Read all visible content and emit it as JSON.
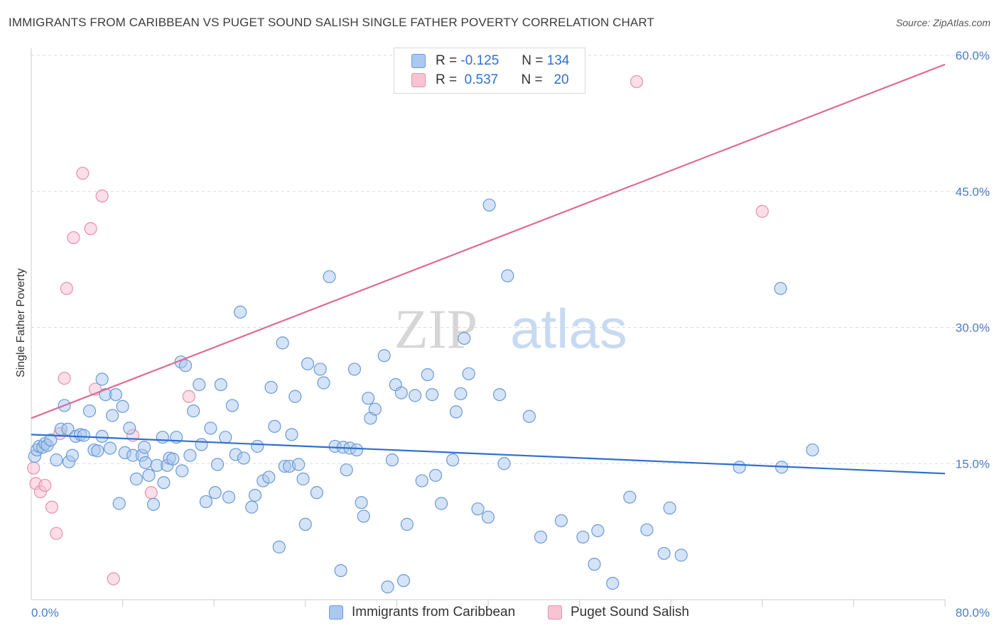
{
  "title": "IMMIGRANTS FROM CARIBBEAN VS PUGET SOUND SALISH SINGLE FATHER POVERTY CORRELATION CHART",
  "source": "Source: ZipAtlas.com",
  "watermark": {
    "zip": "ZIP",
    "atlas": "atlas"
  },
  "legend": {
    "rows": [
      {
        "r_label": "R =",
        "r_value": "-0.125",
        "n_label": "N =",
        "n_value": "134"
      },
      {
        "r_label": "R =",
        "r_value": "0.537",
        "n_label": "N =",
        "n_value": "20"
      }
    ]
  },
  "bottom_legend": [
    "Immigrants from Caribbean",
    "Puget Sound Salish"
  ],
  "colors": {
    "blue_fill": "#aac8f0",
    "blue_stroke": "#6a9ad6",
    "blue_line": "#2f6fce",
    "pink_fill": "#f8c3d3",
    "pink_stroke": "#e890ab",
    "pink_line": "#e06a94",
    "grid": "#dcdcdc",
    "axis_text": "#4a7cc7"
  },
  "chart_data": {
    "type": "scatter",
    "title": "IMMIGRANTS FROM CARIBBEAN VS PUGET SOUND SALISH SINGLE FATHER POVERTY CORRELATION CHART",
    "xlabel": "",
    "ylabel": "Single Father Poverty",
    "xlim": [
      0,
      80
    ],
    "ylim": [
      0,
      60
    ],
    "x_tick_labels": [
      "0.0%",
      "80.0%"
    ],
    "y_ticks": [
      15,
      30,
      45,
      60
    ],
    "y_tick_labels": [
      "15.0%",
      "30.0%",
      "45.0%",
      "60.0%"
    ],
    "grid": true,
    "series": [
      {
        "name": "Immigrants from Caribbean",
        "color": "#aac8f0",
        "R": -0.125,
        "N": 134,
        "trend": {
          "x": [
            0,
            80
          ],
          "y": [
            18.2,
            13.9
          ]
        },
        "points": [
          [
            0.3,
            15.8
          ],
          [
            0.5,
            16.5
          ],
          [
            0.7,
            16.9
          ],
          [
            1.0,
            16.8
          ],
          [
            1.2,
            17.2
          ],
          [
            1.4,
            17.0
          ],
          [
            1.7,
            17.6
          ],
          [
            2.2,
            15.4
          ],
          [
            2.6,
            18.8
          ],
          [
            2.9,
            21.4
          ],
          [
            3.2,
            18.8
          ],
          [
            3.3,
            15.2
          ],
          [
            3.6,
            15.9
          ],
          [
            3.9,
            18.0
          ],
          [
            4.3,
            18.2
          ],
          [
            4.6,
            18.1
          ],
          [
            5.1,
            20.8
          ],
          [
            5.5,
            16.5
          ],
          [
            5.8,
            16.4
          ],
          [
            6.2,
            18.0
          ],
          [
            6.2,
            24.3
          ],
          [
            6.5,
            22.6
          ],
          [
            6.9,
            16.7
          ],
          [
            7.1,
            20.3
          ],
          [
            7.4,
            22.6
          ],
          [
            7.7,
            10.6
          ],
          [
            8.0,
            21.3
          ],
          [
            8.2,
            16.2
          ],
          [
            8.6,
            18.9
          ],
          [
            8.9,
            15.9
          ],
          [
            9.2,
            13.3
          ],
          [
            9.7,
            15.9
          ],
          [
            9.9,
            16.8
          ],
          [
            10.0,
            15.1
          ],
          [
            10.3,
            13.7
          ],
          [
            10.7,
            10.5
          ],
          [
            11.0,
            14.8
          ],
          [
            11.5,
            17.9
          ],
          [
            11.6,
            12.9
          ],
          [
            11.9,
            14.8
          ],
          [
            12.1,
            15.6
          ],
          [
            12.4,
            15.5
          ],
          [
            12.7,
            17.9
          ],
          [
            13.1,
            26.2
          ],
          [
            13.2,
            14.2
          ],
          [
            13.5,
            25.8
          ],
          [
            14.2,
            20.8
          ],
          [
            13.9,
            15.9
          ],
          [
            14.7,
            23.7
          ],
          [
            14.9,
            17.1
          ],
          [
            15.3,
            10.8
          ],
          [
            15.7,
            18.9
          ],
          [
            16.1,
            11.8
          ],
          [
            16.3,
            14.9
          ],
          [
            16.6,
            23.7
          ],
          [
            17.0,
            17.9
          ],
          [
            17.3,
            11.3
          ],
          [
            17.6,
            21.4
          ],
          [
            17.9,
            16.0
          ],
          [
            18.3,
            31.7
          ],
          [
            18.6,
            15.6
          ],
          [
            19.3,
            10.2
          ],
          [
            19.6,
            11.5
          ],
          [
            19.8,
            16.9
          ],
          [
            20.3,
            13.1
          ],
          [
            20.8,
            13.5
          ],
          [
            21.0,
            23.4
          ],
          [
            21.3,
            19.1
          ],
          [
            21.7,
            5.8
          ],
          [
            22.0,
            28.3
          ],
          [
            22.2,
            14.7
          ],
          [
            22.6,
            14.7
          ],
          [
            22.8,
            18.2
          ],
          [
            23.1,
            22.4
          ],
          [
            23.4,
            14.9
          ],
          [
            23.8,
            13.3
          ],
          [
            24.0,
            8.3
          ],
          [
            24.2,
            26.0
          ],
          [
            25.0,
            11.8
          ],
          [
            25.3,
            25.4
          ],
          [
            25.6,
            23.9
          ],
          [
            26.1,
            35.6
          ],
          [
            26.6,
            16.9
          ],
          [
            27.1,
            3.2
          ],
          [
            27.3,
            16.8
          ],
          [
            27.6,
            14.3
          ],
          [
            27.9,
            16.7
          ],
          [
            28.3,
            25.4
          ],
          [
            28.5,
            16.5
          ],
          [
            28.9,
            10.7
          ],
          [
            29.1,
            9.2
          ],
          [
            29.5,
            22.2
          ],
          [
            29.7,
            20.0
          ],
          [
            30.1,
            21.0
          ],
          [
            30.9,
            26.9
          ],
          [
            31.2,
            1.4
          ],
          [
            31.6,
            15.4
          ],
          [
            31.9,
            23.7
          ],
          [
            32.4,
            22.8
          ],
          [
            32.6,
            2.1
          ],
          [
            32.9,
            8.3
          ],
          [
            33.6,
            22.5
          ],
          [
            34.2,
            13.1
          ],
          [
            34.7,
            24.8
          ],
          [
            35.1,
            22.6
          ],
          [
            35.4,
            13.7
          ],
          [
            35.9,
            10.6
          ],
          [
            36.9,
            15.4
          ],
          [
            37.2,
            20.7
          ],
          [
            37.6,
            22.7
          ],
          [
            37.9,
            28.8
          ],
          [
            38.3,
            24.9
          ],
          [
            39.1,
            10.0
          ],
          [
            40.0,
            9.1
          ],
          [
            40.1,
            43.5
          ],
          [
            41.0,
            22.6
          ],
          [
            41.4,
            15.0
          ],
          [
            41.7,
            35.7
          ],
          [
            43.6,
            20.2
          ],
          [
            44.6,
            6.9
          ],
          [
            46.4,
            8.7
          ],
          [
            48.3,
            6.9
          ],
          [
            49.3,
            3.9
          ],
          [
            49.6,
            7.6
          ],
          [
            50.9,
            1.8
          ],
          [
            52.4,
            11.3
          ],
          [
            53.9,
            7.7
          ],
          [
            55.4,
            5.1
          ],
          [
            55.9,
            10.1
          ],
          [
            56.9,
            4.9
          ],
          [
            62.0,
            14.6
          ],
          [
            65.7,
            14.6
          ],
          [
            65.6,
            34.3
          ],
          [
            68.4,
            16.5
          ]
        ]
      },
      {
        "name": "Puget Sound Salish",
        "color": "#f8c3d3",
        "R": 0.537,
        "N": 20,
        "trend": {
          "x": [
            0,
            80
          ],
          "y": [
            20.0,
            59.0
          ]
        },
        "points": [
          [
            0.2,
            14.5
          ],
          [
            0.4,
            12.8
          ],
          [
            0.8,
            11.9
          ],
          [
            1.2,
            12.6
          ],
          [
            1.8,
            10.2
          ],
          [
            2.2,
            7.3
          ],
          [
            2.5,
            18.3
          ],
          [
            2.9,
            24.4
          ],
          [
            3.1,
            34.3
          ],
          [
            3.7,
            39.9
          ],
          [
            4.5,
            47.0
          ],
          [
            5.2,
            40.9
          ],
          [
            5.6,
            23.2
          ],
          [
            6.2,
            44.5
          ],
          [
            7.2,
            2.3
          ],
          [
            8.9,
            18.1
          ],
          [
            10.5,
            11.8
          ],
          [
            13.8,
            22.4
          ],
          [
            53.0,
            57.1
          ],
          [
            64.0,
            42.8
          ]
        ]
      }
    ]
  }
}
